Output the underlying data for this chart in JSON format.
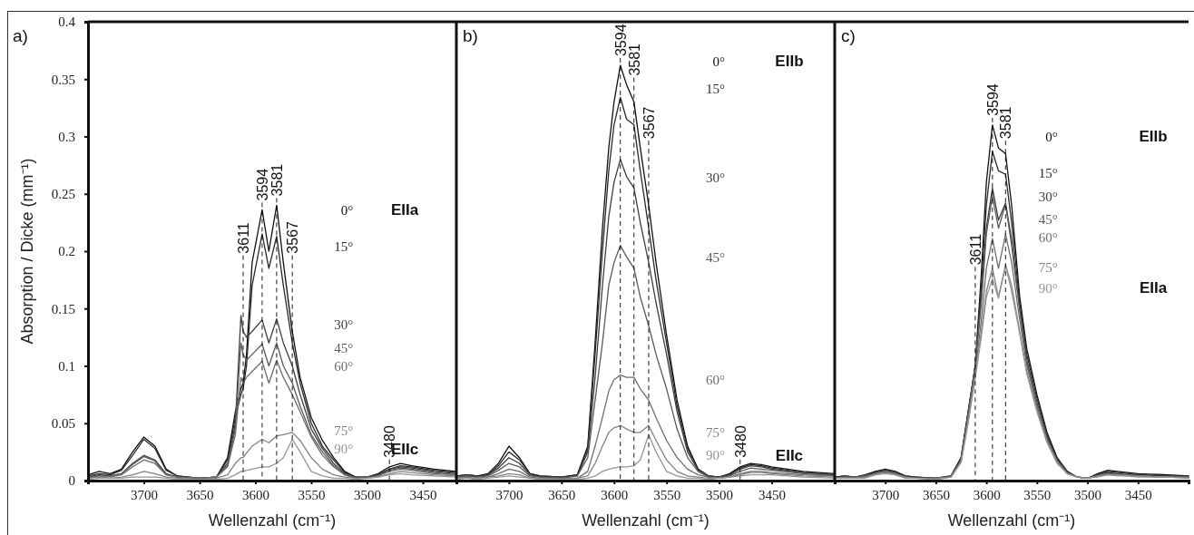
{
  "chart_data": [
    {
      "type": "line",
      "title": "a)",
      "xlabel": "Wellenzahl (cm⁻¹)",
      "ylabel": "Absorption / Dicke (mm⁻¹)",
      "xlim": [
        3750,
        3420
      ],
      "xticks": [
        3700,
        3650,
        3600,
        3550,
        3500,
        3450
      ],
      "ylim": [
        0,
        0.4
      ],
      "yticks": [
        0,
        0.05,
        0.1,
        0.15,
        0.2,
        0.25,
        0.3,
        0.35,
        0.4
      ],
      "x": [
        3750,
        3740,
        3730,
        3720,
        3710,
        3700,
        3690,
        3680,
        3670,
        3650,
        3635,
        3625,
        3618,
        3613,
        3611,
        3608,
        3603,
        3594,
        3588,
        3581,
        3575,
        3567,
        3560,
        3550,
        3540,
        3530,
        3520,
        3510,
        3500,
        3490,
        3480,
        3470,
        3460,
        3440,
        3420
      ],
      "series": [
        {
          "name": "0°",
          "color": "#111111",
          "values": [
            0.005,
            0.008,
            0.006,
            0.01,
            0.025,
            0.038,
            0.03,
            0.01,
            0.004,
            0.002,
            0.003,
            0.02,
            0.06,
            0.08,
            0.085,
            0.11,
            0.19,
            0.236,
            0.2,
            0.24,
            0.19,
            0.13,
            0.09,
            0.055,
            0.035,
            0.02,
            0.008,
            0.003,
            0.003,
            0.006,
            0.012,
            0.015,
            0.013,
            0.01,
            0.008
          ]
        },
        {
          "name": "15°",
          "color": "#2b2b2b",
          "values": [
            0.004,
            0.006,
            0.005,
            0.009,
            0.022,
            0.036,
            0.028,
            0.009,
            0.004,
            0.002,
            0.003,
            0.018,
            0.055,
            0.075,
            0.08,
            0.1,
            0.17,
            0.215,
            0.185,
            0.213,
            0.17,
            0.12,
            0.085,
            0.05,
            0.03,
            0.018,
            0.007,
            0.003,
            0.003,
            0.005,
            0.01,
            0.013,
            0.012,
            0.009,
            0.007
          ]
        },
        {
          "name": "30°",
          "color": "#3e3e3e",
          "values": [
            0.003,
            0.005,
            0.004,
            0.006,
            0.015,
            0.022,
            0.018,
            0.006,
            0.003,
            0.002,
            0.003,
            0.015,
            0.05,
            0.144,
            0.13,
            0.125,
            0.13,
            0.14,
            0.12,
            0.141,
            0.12,
            0.1,
            0.075,
            0.045,
            0.028,
            0.015,
            0.006,
            0.002,
            0.003,
            0.005,
            0.01,
            0.012,
            0.011,
            0.008,
            0.006
          ]
        },
        {
          "name": "45°",
          "color": "#5a5a5a",
          "values": [
            0.003,
            0.004,
            0.004,
            0.006,
            0.014,
            0.021,
            0.017,
            0.005,
            0.003,
            0.002,
            0.003,
            0.013,
            0.045,
            0.12,
            0.11,
            0.105,
            0.11,
            0.119,
            0.1,
            0.12,
            0.1,
            0.085,
            0.065,
            0.04,
            0.025,
            0.013,
            0.005,
            0.002,
            0.003,
            0.004,
            0.009,
            0.011,
            0.01,
            0.007,
            0.005
          ]
        },
        {
          "name": "60°",
          "color": "#6e6e6e",
          "values": [
            0.002,
            0.004,
            0.003,
            0.005,
            0.012,
            0.018,
            0.015,
            0.005,
            0.003,
            0.002,
            0.003,
            0.012,
            0.04,
            0.09,
            0.085,
            0.09,
            0.095,
            0.104,
            0.085,
            0.105,
            0.09,
            0.075,
            0.06,
            0.038,
            0.022,
            0.012,
            0.005,
            0.002,
            0.002,
            0.004,
            0.008,
            0.01,
            0.009,
            0.006,
            0.005
          ]
        },
        {
          "name": "75°",
          "color": "#828282",
          "values": [
            0.002,
            0.003,
            0.002,
            0.003,
            0.005,
            0.008,
            0.006,
            0.003,
            0.002,
            0.001,
            0.002,
            0.005,
            0.015,
            0.02,
            0.02,
            0.024,
            0.03,
            0.036,
            0.033,
            0.039,
            0.04,
            0.042,
            0.035,
            0.02,
            0.01,
            0.005,
            0.003,
            0.002,
            0.002,
            0.003,
            0.006,
            0.008,
            0.007,
            0.005,
            0.004
          ]
        },
        {
          "name": "90°",
          "color": "#969696",
          "values": [
            0.001,
            0.002,
            0.002,
            0.002,
            0.003,
            0.003,
            0.003,
            0.002,
            0.001,
            0.001,
            0.001,
            0.002,
            0.005,
            0.008,
            0.008,
            0.009,
            0.01,
            0.012,
            0.012,
            0.015,
            0.02,
            0.036,
            0.025,
            0.008,
            0.004,
            0.002,
            0.002,
            0.001,
            0.002,
            0.003,
            0.005,
            0.006,
            0.005,
            0.004,
            0.003
          ]
        }
      ],
      "ref_lines": [
        {
          "axis": "x",
          "value": 3611,
          "label": "3611",
          "line_style": "dashed"
        },
        {
          "axis": "x",
          "value": 3594,
          "label": "3594",
          "line_style": "dashed"
        },
        {
          "axis": "x",
          "value": 3581,
          "label": "3581",
          "line_style": "dashed"
        },
        {
          "axis": "x",
          "value": 3567,
          "label": "3567",
          "line_style": "dashed"
        },
        {
          "axis": "x",
          "value": 3480,
          "label": "3480",
          "line_style": "dashed"
        }
      ],
      "annotations": [
        "EIIa",
        "EIIc"
      ]
    },
    {
      "type": "line",
      "title": "b)",
      "xlabel": "Wellenzahl (cm⁻¹)",
      "xlim": [
        3750,
        3390
      ],
      "xticks": [
        3700,
        3650,
        3600,
        3550,
        3500,
        3450
      ],
      "ylim": [
        0,
        0.4
      ],
      "tick_labels": "x",
      "x": [
        3750,
        3740,
        3730,
        3720,
        3710,
        3700,
        3690,
        3680,
        3670,
        3650,
        3635,
        3625,
        3618,
        3611,
        3605,
        3600,
        3594,
        3588,
        3581,
        3575,
        3567,
        3560,
        3550,
        3540,
        3530,
        3520,
        3510,
        3500,
        3490,
        3480,
        3470,
        3460,
        3450,
        3420,
        3390
      ],
      "series": [
        {
          "name": "0°",
          "color": "#111111",
          "values": [
            0.004,
            0.005,
            0.004,
            0.006,
            0.015,
            0.03,
            0.02,
            0.006,
            0.004,
            0.003,
            0.005,
            0.03,
            0.12,
            0.22,
            0.29,
            0.33,
            0.362,
            0.345,
            0.33,
            0.29,
            0.24,
            0.19,
            0.127,
            0.07,
            0.03,
            0.01,
            0.004,
            0.003,
            0.006,
            0.012,
            0.015,
            0.014,
            0.012,
            0.008,
            0.006
          ]
        },
        {
          "name": "15°",
          "color": "#2b2b2b",
          "values": [
            0.004,
            0.005,
            0.004,
            0.005,
            0.013,
            0.025,
            0.018,
            0.006,
            0.004,
            0.003,
            0.005,
            0.028,
            0.11,
            0.2,
            0.27,
            0.31,
            0.334,
            0.315,
            0.31,
            0.27,
            0.22,
            0.175,
            0.12,
            0.065,
            0.028,
            0.01,
            0.004,
            0.003,
            0.005,
            0.011,
            0.014,
            0.013,
            0.011,
            0.007,
            0.005
          ]
        },
        {
          "name": "30°",
          "color": "#3e3e3e",
          "values": [
            0.003,
            0.004,
            0.003,
            0.005,
            0.011,
            0.02,
            0.015,
            0.005,
            0.003,
            0.003,
            0.004,
            0.025,
            0.09,
            0.17,
            0.23,
            0.26,
            0.28,
            0.265,
            0.255,
            0.225,
            0.19,
            0.155,
            0.11,
            0.06,
            0.025,
            0.009,
            0.004,
            0.003,
            0.005,
            0.01,
            0.013,
            0.012,
            0.01,
            0.007,
            0.005
          ]
        },
        {
          "name": "45°",
          "color": "#5a5a5a",
          "values": [
            0.003,
            0.004,
            0.003,
            0.004,
            0.009,
            0.015,
            0.012,
            0.004,
            0.003,
            0.002,
            0.004,
            0.02,
            0.07,
            0.12,
            0.17,
            0.19,
            0.205,
            0.195,
            0.185,
            0.16,
            0.135,
            0.11,
            0.08,
            0.045,
            0.02,
            0.008,
            0.003,
            0.002,
            0.004,
            0.008,
            0.011,
            0.01,
            0.009,
            0.006,
            0.004
          ]
        },
        {
          "name": "60°",
          "color": "#6e6e6e",
          "values": [
            0.002,
            0.003,
            0.002,
            0.003,
            0.006,
            0.01,
            0.008,
            0.003,
            0.002,
            0.002,
            0.002,
            0.008,
            0.03,
            0.055,
            0.078,
            0.088,
            0.092,
            0.09,
            0.09,
            0.08,
            0.07,
            0.055,
            0.035,
            0.02,
            0.01,
            0.005,
            0.003,
            0.002,
            0.003,
            0.006,
            0.008,
            0.008,
            0.007,
            0.005,
            0.004
          ]
        },
        {
          "name": "75°",
          "color": "#828282",
          "values": [
            0.002,
            0.002,
            0.002,
            0.003,
            0.004,
            0.006,
            0.005,
            0.002,
            0.002,
            0.001,
            0.002,
            0.004,
            0.015,
            0.03,
            0.042,
            0.046,
            0.048,
            0.045,
            0.042,
            0.042,
            0.048,
            0.035,
            0.018,
            0.008,
            0.004,
            0.003,
            0.002,
            0.002,
            0.003,
            0.005,
            0.007,
            0.007,
            0.006,
            0.004,
            0.003
          ]
        },
        {
          "name": "90°",
          "color": "#969696",
          "values": [
            0.001,
            0.002,
            0.001,
            0.002,
            0.003,
            0.004,
            0.003,
            0.002,
            0.001,
            0.001,
            0.001,
            0.002,
            0.004,
            0.008,
            0.01,
            0.011,
            0.012,
            0.012,
            0.013,
            0.018,
            0.04,
            0.025,
            0.008,
            0.004,
            0.002,
            0.002,
            0.001,
            0.002,
            0.003,
            0.004,
            0.005,
            0.005,
            0.005,
            0.003,
            0.002
          ]
        }
      ],
      "ref_lines": [
        {
          "axis": "x",
          "value": 3594,
          "label": "3594",
          "line_style": "dashed"
        },
        {
          "axis": "x",
          "value": 3581,
          "label": "3581",
          "line_style": "dashed"
        },
        {
          "axis": "x",
          "value": 3567,
          "label": "3567",
          "line_style": "dashed"
        },
        {
          "axis": "x",
          "value": 3480,
          "label": "3480",
          "line_style": "dashed"
        }
      ],
      "annotations": [
        "EIIb",
        "EIIc"
      ]
    },
    {
      "type": "line",
      "title": "c)",
      "xlabel": "Wellenzahl (cm⁻¹)",
      "xlim": [
        3750,
        3400
      ],
      "xticks": [
        3700,
        3650,
        3600,
        3550,
        3500,
        3450
      ],
      "ylim": [
        0,
        0.4
      ],
      "tick_labels": "x",
      "x": [
        3750,
        3740,
        3730,
        3720,
        3710,
        3700,
        3690,
        3680,
        3670,
        3650,
        3635,
        3625,
        3618,
        3611,
        3605,
        3600,
        3594,
        3588,
        3581,
        3575,
        3567,
        3560,
        3550,
        3540,
        3530,
        3520,
        3510,
        3500,
        3490,
        3480,
        3470,
        3460,
        3450,
        3420,
        3400
      ],
      "series": [
        {
          "name": "0°",
          "color": "#111111",
          "values": [
            0.003,
            0.004,
            0.003,
            0.005,
            0.008,
            0.01,
            0.008,
            0.004,
            0.003,
            0.002,
            0.004,
            0.02,
            0.06,
            0.1,
            0.18,
            0.26,
            0.31,
            0.29,
            0.285,
            0.24,
            0.16,
            0.115,
            0.075,
            0.042,
            0.02,
            0.008,
            0.003,
            0.002,
            0.006,
            0.009,
            0.008,
            0.007,
            0.006,
            0.005,
            0.004
          ]
        },
        {
          "name": "15°",
          "color": "#2b2b2b",
          "values": [
            0.003,
            0.004,
            0.003,
            0.004,
            0.007,
            0.009,
            0.007,
            0.004,
            0.003,
            0.002,
            0.004,
            0.02,
            0.06,
            0.1,
            0.17,
            0.24,
            0.287,
            0.27,
            0.267,
            0.225,
            0.155,
            0.11,
            0.072,
            0.04,
            0.019,
            0.008,
            0.003,
            0.002,
            0.005,
            0.008,
            0.007,
            0.006,
            0.005,
            0.004,
            0.004
          ]
        },
        {
          "name": "30°",
          "color": "#3e3e3e",
          "values": [
            0.003,
            0.003,
            0.003,
            0.004,
            0.007,
            0.009,
            0.007,
            0.003,
            0.003,
            0.002,
            0.003,
            0.018,
            0.058,
            0.1,
            0.16,
            0.22,
            0.255,
            0.227,
            0.242,
            0.21,
            0.15,
            0.105,
            0.068,
            0.038,
            0.018,
            0.007,
            0.003,
            0.002,
            0.005,
            0.007,
            0.006,
            0.005,
            0.005,
            0.004,
            0.003
          ]
        },
        {
          "name": "45°",
          "color": "#5a5a5a",
          "values": [
            0.002,
            0.003,
            0.003,
            0.004,
            0.006,
            0.008,
            0.006,
            0.003,
            0.002,
            0.002,
            0.003,
            0.018,
            0.057,
            0.1,
            0.155,
            0.215,
            0.248,
            0.22,
            0.241,
            0.205,
            0.148,
            0.103,
            0.066,
            0.036,
            0.017,
            0.007,
            0.003,
            0.002,
            0.004,
            0.006,
            0.006,
            0.005,
            0.004,
            0.003,
            0.003
          ]
        },
        {
          "name": "60°",
          "color": "#6e6e6e",
          "values": [
            0.002,
            0.003,
            0.002,
            0.003,
            0.006,
            0.008,
            0.006,
            0.003,
            0.002,
            0.002,
            0.003,
            0.017,
            0.055,
            0.095,
            0.14,
            0.185,
            0.211,
            0.185,
            0.215,
            0.19,
            0.14,
            0.1,
            0.065,
            0.036,
            0.017,
            0.006,
            0.003,
            0.002,
            0.004,
            0.006,
            0.005,
            0.005,
            0.004,
            0.003,
            0.003
          ]
        },
        {
          "name": "75°",
          "color": "#828282",
          "values": [
            0.002,
            0.002,
            0.002,
            0.003,
            0.005,
            0.007,
            0.005,
            0.003,
            0.002,
            0.001,
            0.003,
            0.016,
            0.052,
            0.09,
            0.13,
            0.165,
            0.185,
            0.16,
            0.188,
            0.17,
            0.13,
            0.095,
            0.062,
            0.034,
            0.016,
            0.006,
            0.003,
            0.002,
            0.004,
            0.005,
            0.005,
            0.004,
            0.004,
            0.003,
            0.002
          ]
        },
        {
          "name": "90°",
          "color": "#969696",
          "values": [
            0.002,
            0.002,
            0.002,
            0.002,
            0.005,
            0.006,
            0.005,
            0.002,
            0.002,
            0.001,
            0.003,
            0.016,
            0.05,
            0.09,
            0.125,
            0.16,
            0.176,
            0.159,
            0.187,
            0.165,
            0.128,
            0.093,
            0.06,
            0.033,
            0.015,
            0.006,
            0.003,
            0.002,
            0.003,
            0.005,
            0.004,
            0.004,
            0.003,
            0.003,
            0.002
          ]
        }
      ],
      "ref_lines": [
        {
          "axis": "x",
          "value": 3611,
          "label": "3611",
          "line_style": "dashed"
        },
        {
          "axis": "x",
          "value": 3594,
          "label": "3594",
          "line_style": "dashed"
        },
        {
          "axis": "x",
          "value": 3581,
          "label": "3581",
          "line_style": "dashed"
        }
      ],
      "annotations": [
        "EIIb",
        "EIIa"
      ]
    }
  ]
}
